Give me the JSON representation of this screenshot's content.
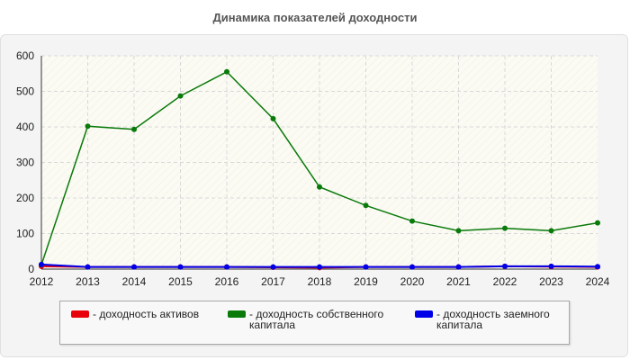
{
  "title": "Динамика показателей доходности",
  "colors": {
    "assets": "#e8000b",
    "equity": "#0a7a0a",
    "debt": "#0000e8"
  },
  "legend": [
    {
      "key": "assets",
      "label": "- доходность активов"
    },
    {
      "key": "equity",
      "label": "- доходность собственного капитала"
    },
    {
      "key": "debt",
      "label": "- доходность заемного капитала"
    }
  ],
  "chart_data": {
    "type": "line",
    "title": "Динамика показателей доходности",
    "xlabel": "",
    "ylabel": "",
    "x": [
      "2012",
      "2013",
      "2014",
      "2015",
      "2016",
      "2017",
      "2018",
      "2019",
      "2020",
      "2021",
      "2022",
      "2023",
      "2024"
    ],
    "ylim": [
      0,
      600
    ],
    "yticks": [
      0,
      100,
      200,
      300,
      400,
      500,
      600
    ],
    "grid": true,
    "legend_position": "bottom",
    "series": [
      {
        "key": "assets",
        "name": "- доходность активов",
        "color": "#e8000b",
        "values": [
          8,
          6,
          6,
          6,
          6,
          5,
          4,
          6,
          6,
          6,
          8,
          7,
          6
        ]
      },
      {
        "key": "equity",
        "name": "- доходность собственного капитала",
        "color": "#0a7a0a",
        "values": [
          12,
          402,
          393,
          487,
          555,
          423,
          231,
          179,
          135,
          108,
          115,
          108,
          130
        ]
      },
      {
        "key": "debt",
        "name": "- доходность заемного капитала",
        "color": "#0000e8",
        "values": [
          13,
          6,
          6,
          6,
          6,
          6,
          6,
          6,
          6,
          6,
          8,
          8,
          7
        ]
      }
    ]
  }
}
